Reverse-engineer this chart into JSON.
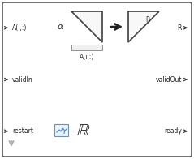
{
  "bg_color": "#ffffff",
  "block_border_color": "#5a5a5a",
  "port_arrow_color": "#404040",
  "port_labels_left": [
    [
      "A(i,:)",
      0.825
    ],
    [
      "validIn",
      0.5
    ],
    [
      "restart",
      0.175
    ]
  ],
  "port_labels_right": [
    [
      "R",
      0.825
    ],
    [
      "validOut",
      0.5
    ],
    [
      "ready",
      0.175
    ]
  ],
  "alpha_label": "α",
  "Ai_label": "A(i,:)",
  "triangle_edge_color": "#404040",
  "triangle_fill_color": "#f8f8f8",
  "small_rect_color": "#f0f0f0",
  "small_rect_edge": "#909090",
  "bottom_arrow_color": "#b0b0b0",
  "fi_box_edge": "#7090b0",
  "fi_box_fill": "#e8f4ff",
  "fi_line_color": "#5080c0",
  "R_bold_color": "#1a1a1a"
}
